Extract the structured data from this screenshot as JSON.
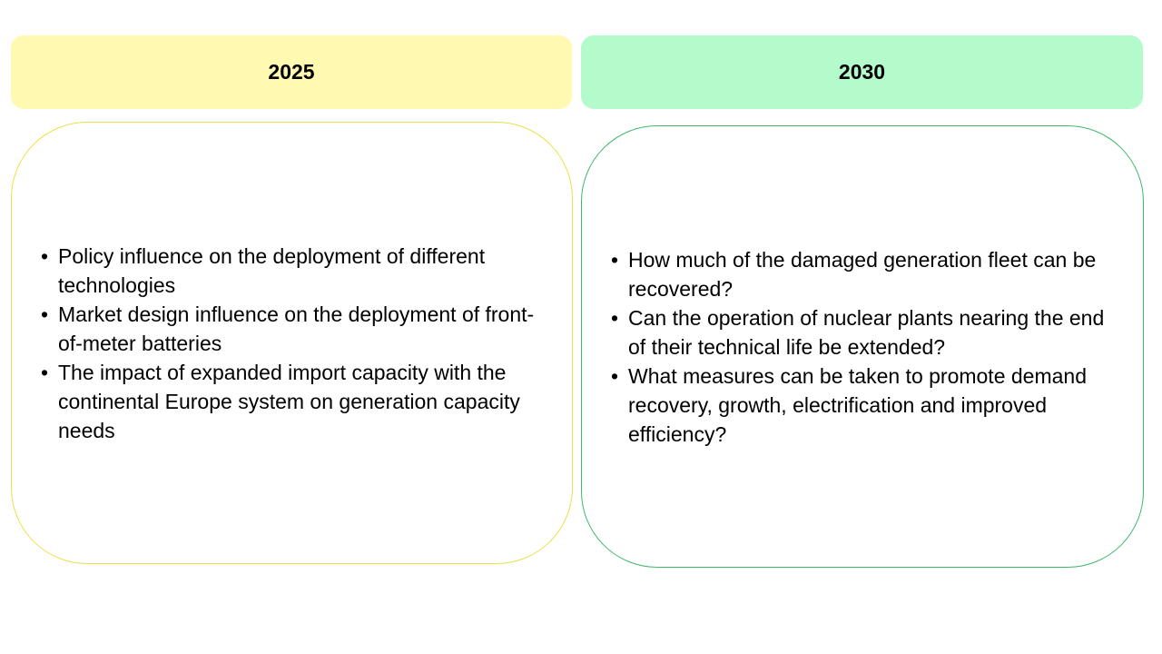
{
  "columns": [
    {
      "year": "2025",
      "colors": {
        "header_bg": "#fff9b1",
        "border": "#f0de48"
      },
      "bullets": [
        "Policy influence on the deployment of different technologies",
        "Market design influence on the deployment of front-of-meter batteries",
        "The impact of expanded import capacity with the continental Europe system on generation capacity needs"
      ]
    },
    {
      "year": "2030",
      "colors": {
        "header_bg": "#b3fbcb",
        "border": "#3fb868"
      },
      "bullets": [
        "How much of the damaged generation fleet can be recovered?",
        "Can the operation of nuclear plants nearing the end of their technical life be extended?",
        "What measures can be taken to promote demand recovery, growth, electrification and improved efficiency?"
      ]
    }
  ]
}
